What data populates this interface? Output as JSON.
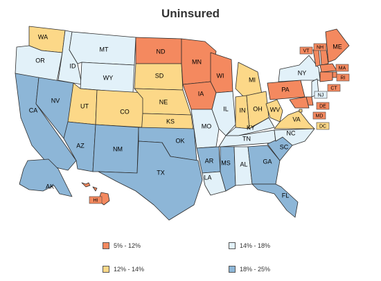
{
  "title": "Uninsured",
  "colors": {
    "low": "#f4895f",
    "mid_low": "#fcd888",
    "mid_high": "#e2f1f9",
    "high": "#8db6d7"
  },
  "legend": [
    {
      "label": "5% - 12%",
      "color": "#f4895f"
    },
    {
      "label": "14% - 18%",
      "color": "#e2f1f9"
    },
    {
      "label": "12% - 14%",
      "color": "#fcd888"
    },
    {
      "label": "18% - 25%",
      "color": "#8db6d7"
    }
  ],
  "states": [
    {
      "abbr": "WA",
      "bin": "mid_low"
    },
    {
      "abbr": "OR",
      "bin": "mid_high"
    },
    {
      "abbr": "CA",
      "bin": "high"
    },
    {
      "abbr": "ID",
      "bin": "mid_high"
    },
    {
      "abbr": "NV",
      "bin": "high"
    },
    {
      "abbr": "MT",
      "bin": "mid_high"
    },
    {
      "abbr": "WY",
      "bin": "mid_high"
    },
    {
      "abbr": "UT",
      "bin": "mid_low"
    },
    {
      "abbr": "AZ",
      "bin": "high"
    },
    {
      "abbr": "CO",
      "bin": "mid_low"
    },
    {
      "abbr": "NM",
      "bin": "high"
    },
    {
      "abbr": "ND",
      "bin": "low"
    },
    {
      "abbr": "SD",
      "bin": "mid_low"
    },
    {
      "abbr": "NE",
      "bin": "mid_low"
    },
    {
      "abbr": "KS",
      "bin": "mid_low"
    },
    {
      "abbr": "OK",
      "bin": "high"
    },
    {
      "abbr": "TX",
      "bin": "high"
    },
    {
      "abbr": "MN",
      "bin": "low"
    },
    {
      "abbr": "IA",
      "bin": "low"
    },
    {
      "abbr": "MO",
      "bin": "mid_high"
    },
    {
      "abbr": "AR",
      "bin": "high"
    },
    {
      "abbr": "LA",
      "bin": "mid_high"
    },
    {
      "abbr": "WI",
      "bin": "low"
    },
    {
      "abbr": "IL",
      "bin": "mid_high"
    },
    {
      "abbr": "MI",
      "bin": "mid_low"
    },
    {
      "abbr": "IN",
      "bin": "mid_low"
    },
    {
      "abbr": "OH",
      "bin": "mid_low"
    },
    {
      "abbr": "KY",
      "bin": "mid_high"
    },
    {
      "abbr": "TN",
      "bin": "mid_high"
    },
    {
      "abbr": "MS",
      "bin": "high"
    },
    {
      "abbr": "AL",
      "bin": "mid_high"
    },
    {
      "abbr": "GA",
      "bin": "high"
    },
    {
      "abbr": "FL",
      "bin": "high"
    },
    {
      "abbr": "SC",
      "bin": "high"
    },
    {
      "abbr": "NC",
      "bin": "mid_high"
    },
    {
      "abbr": "VA",
      "bin": "mid_low"
    },
    {
      "abbr": "WV",
      "bin": "mid_low"
    },
    {
      "abbr": "PA",
      "bin": "low"
    },
    {
      "abbr": "NY",
      "bin": "mid_high"
    },
    {
      "abbr": "VT",
      "bin": "low"
    },
    {
      "abbr": "NH",
      "bin": "low"
    },
    {
      "abbr": "ME",
      "bin": "low"
    },
    {
      "abbr": "MA",
      "bin": "low"
    },
    {
      "abbr": "RI",
      "bin": "low"
    },
    {
      "abbr": "CT",
      "bin": "low"
    },
    {
      "abbr": "NJ",
      "bin": "mid_high"
    },
    {
      "abbr": "DE",
      "bin": "low"
    },
    {
      "abbr": "MD",
      "bin": "low"
    },
    {
      "abbr": "DC",
      "bin": "mid_low"
    },
    {
      "abbr": "AK",
      "bin": "high"
    },
    {
      "abbr": "HI",
      "bin": "low"
    }
  ]
}
